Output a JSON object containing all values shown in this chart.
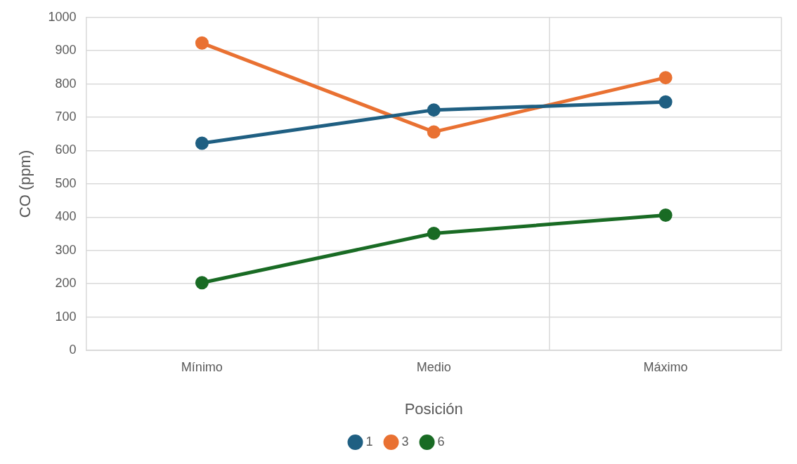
{
  "chart_data": {
    "type": "line",
    "xlabel": "Posición",
    "ylabel": "CO (ppm)",
    "categories": [
      "Mínimo",
      "Medio",
      "Máximo"
    ],
    "series": [
      {
        "name": "1",
        "color": "#1f5f82",
        "values": [
          622,
          722,
          746
        ]
      },
      {
        "name": "3",
        "color": "#e97132",
        "values": [
          923,
          656,
          819
        ]
      },
      {
        "name": "6",
        "color": "#196b24",
        "values": [
          203,
          351,
          406
        ]
      }
    ],
    "ylim": [
      0,
      1000
    ],
    "yticks": [
      0,
      100,
      200,
      300,
      400,
      500,
      600,
      700,
      800,
      900,
      1000
    ],
    "grid": true,
    "legend": "bottom",
    "marker": "circle",
    "line_style": "solid"
  }
}
